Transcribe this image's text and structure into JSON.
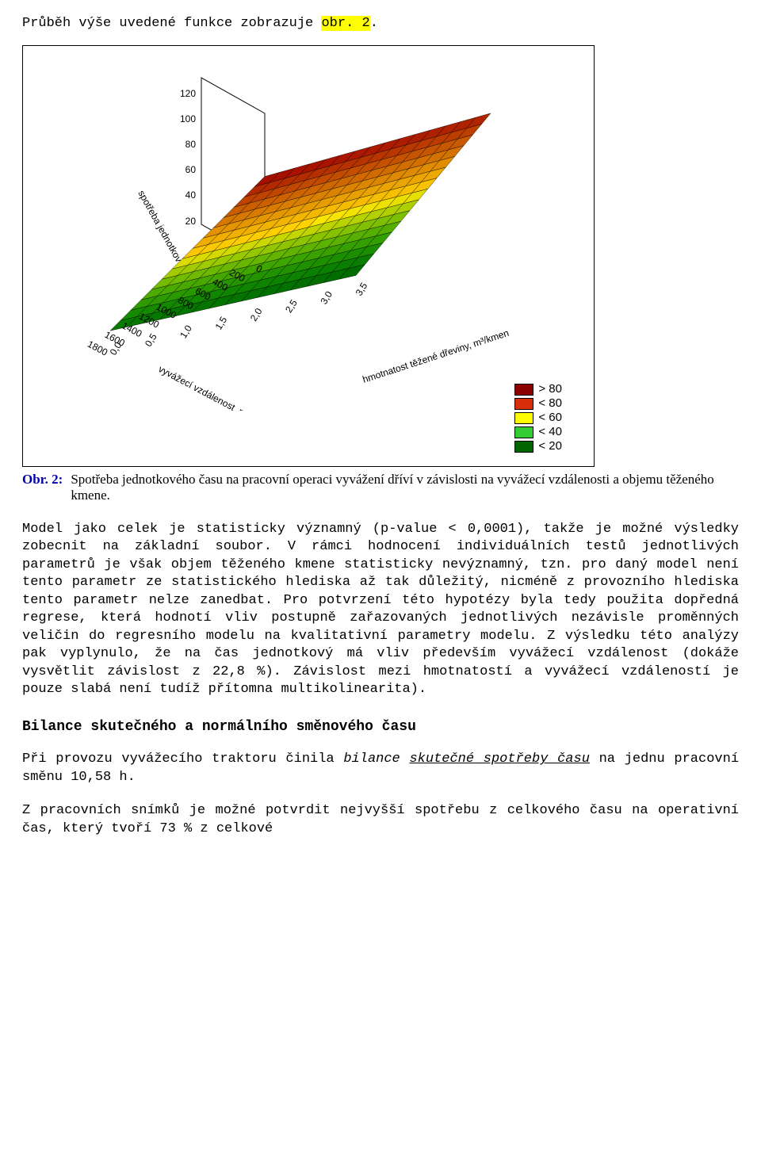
{
  "intro": {
    "pre": "Průběh výše uvedené funkce zobrazuje ",
    "highlight": "obr. 2",
    "post": "."
  },
  "chart": {
    "type": "3d-surface",
    "z_axis": {
      "label": "spotřeba jednotkové času, min",
      "ticks": [
        "20",
        "40",
        "60",
        "80",
        "100",
        "120"
      ]
    },
    "x_axis": {
      "label": "vyvážecí vzdálenost, m",
      "ticks": [
        "0",
        "200",
        "400",
        "600",
        "800",
        "1000",
        "1200",
        "1400",
        "1600",
        "1800"
      ]
    },
    "y_axis": {
      "label": "hmotnatost těžené dřeviny, m³/kmen",
      "ticks": [
        "0,0",
        "0,5",
        "1,0",
        "1,5",
        "2,0",
        "2,5",
        "3,0",
        "3,5"
      ]
    },
    "legend": [
      {
        "label": "> 80",
        "color": "#8b0000"
      },
      {
        "label": "< 80",
        "color": "#d62f0a"
      },
      {
        "label": "< 60",
        "color": "#ffff00"
      },
      {
        "label": "< 40",
        "color": "#33cc33"
      },
      {
        "label": "< 20",
        "color": "#006400"
      }
    ],
    "background_color": "#ffffff",
    "grid_color": "#000000",
    "grid_n": 15
  },
  "caption": {
    "label": "Obr. 2:",
    "text": "Spotřeba jednotkového času na pracovní operaci vyvážení dříví v závislosti na vyvážecí vzdálenosti a objemu těženého kmene."
  },
  "para1": "Model jako celek je statisticky významný (p-value < 0,0001), takže je možné výsledky zobecnit na základní soubor. V rámci hodnocení individuálních testů jednotlivých parametrů je však objem těženého kmene statisticky nevýznamný, tzn. pro daný model není tento parametr ze statistického hlediska až tak důležitý, nicméně z provozního hlediska tento parametr nelze zanedbat. Pro potvrzení této hypotézy byla tedy použita dopředná regrese, která hodnotí vliv postupně zařazovaných jednotlivých nezávisle proměnných veličin do regresního modelu na kvalitativní parametry modelu. Z výsledku této analýzy pak vyplynulo, že na čas jednotkový má vliv především vyvážecí vzdálenost (dokáže vysvětlit závislost z 22,8 %). Závislost mezi hmotnatostí a vyvážecí vzdáleností je pouze slabá není tudíž přítomna multikolinearita).",
  "heading": "Bilance skutečného a normálního směnového času",
  "para2": {
    "pre": "Při provozu vyvážecího traktoru činila ",
    "bilance": "bilance",
    "mid": " ",
    "skutecne": "skutečné spotřeby času",
    "post": " na jednu pracovní směnu 10,58 h."
  },
  "para3": "Z pracovních snímků je možné potvrdit nejvyšší spotřebu z celkového času na operativní čas, který tvoří 73 % z celkové"
}
